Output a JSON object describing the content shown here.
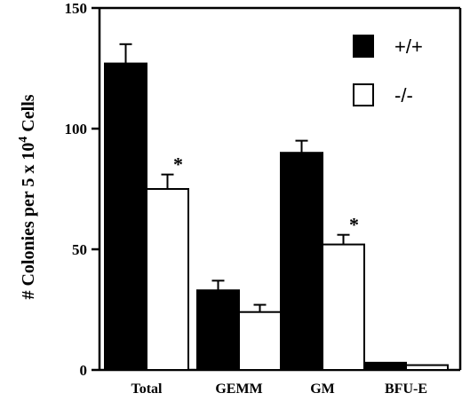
{
  "chart_data": {
    "type": "bar",
    "title": "",
    "xlabel": "",
    "ylabel": {
      "prefix": "# Colonies per 5 x 10",
      "superscript": "4",
      "suffix": " Cells"
    },
    "ylim": [
      0,
      150
    ],
    "yticks": [
      "0",
      "50",
      "100",
      "150"
    ],
    "grid": false,
    "legend_position": "top-right",
    "categories": [
      "Total",
      "GEMM",
      "GM",
      "BFU-E"
    ],
    "series": [
      {
        "name": "+/+",
        "color": "#000000",
        "fill": "solid",
        "values": [
          127,
          33,
          90,
          3
        ],
        "errors": [
          8,
          4,
          5,
          0
        ],
        "significance": [
          "",
          "",
          "",
          ""
        ]
      },
      {
        "name": "-/-",
        "color": "#ffffff",
        "fill": "open",
        "values": [
          75,
          24,
          52,
          2
        ],
        "errors": [
          6,
          3,
          4,
          0
        ],
        "significance": [
          "*",
          "",
          "*",
          ""
        ]
      }
    ]
  }
}
